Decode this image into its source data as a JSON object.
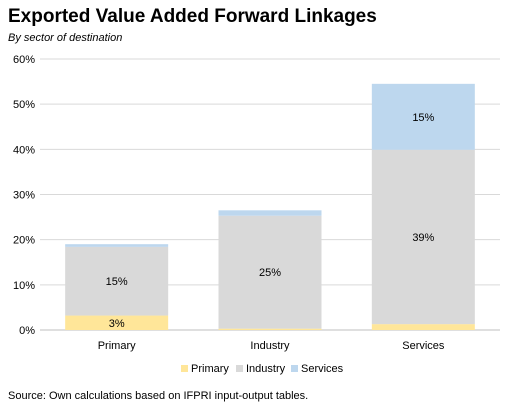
{
  "chart_data": {
    "type": "bar",
    "stacked": true,
    "title": "Exported Value Added Forward Linkages",
    "subtitle": "By sector of destination",
    "source": "Source: Own calculations based on IFPRI input-output tables.",
    "categories": [
      "Primary",
      "Industry",
      "Services"
    ],
    "series": [
      {
        "name": "Primary",
        "values": [
          3.2,
          0.3,
          1.3
        ],
        "labels": [
          "3%",
          "",
          ""
        ],
        "color": "#ffe699"
      },
      {
        "name": "Industry",
        "values": [
          15.2,
          25.0,
          38.6
        ],
        "labels": [
          "15%",
          "25%",
          "39%"
        ],
        "color": "#d9d9d9"
      },
      {
        "name": "Services",
        "values": [
          0.6,
          1.2,
          14.6
        ],
        "labels": [
          "",
          "",
          "15%"
        ],
        "color": "#bdd7ee"
      }
    ],
    "yticks": [
      "0%",
      "10%",
      "20%",
      "30%",
      "40%",
      "50%",
      "60%"
    ],
    "ylim": [
      0,
      60
    ],
    "grid": true,
    "legend": "bottom"
  }
}
